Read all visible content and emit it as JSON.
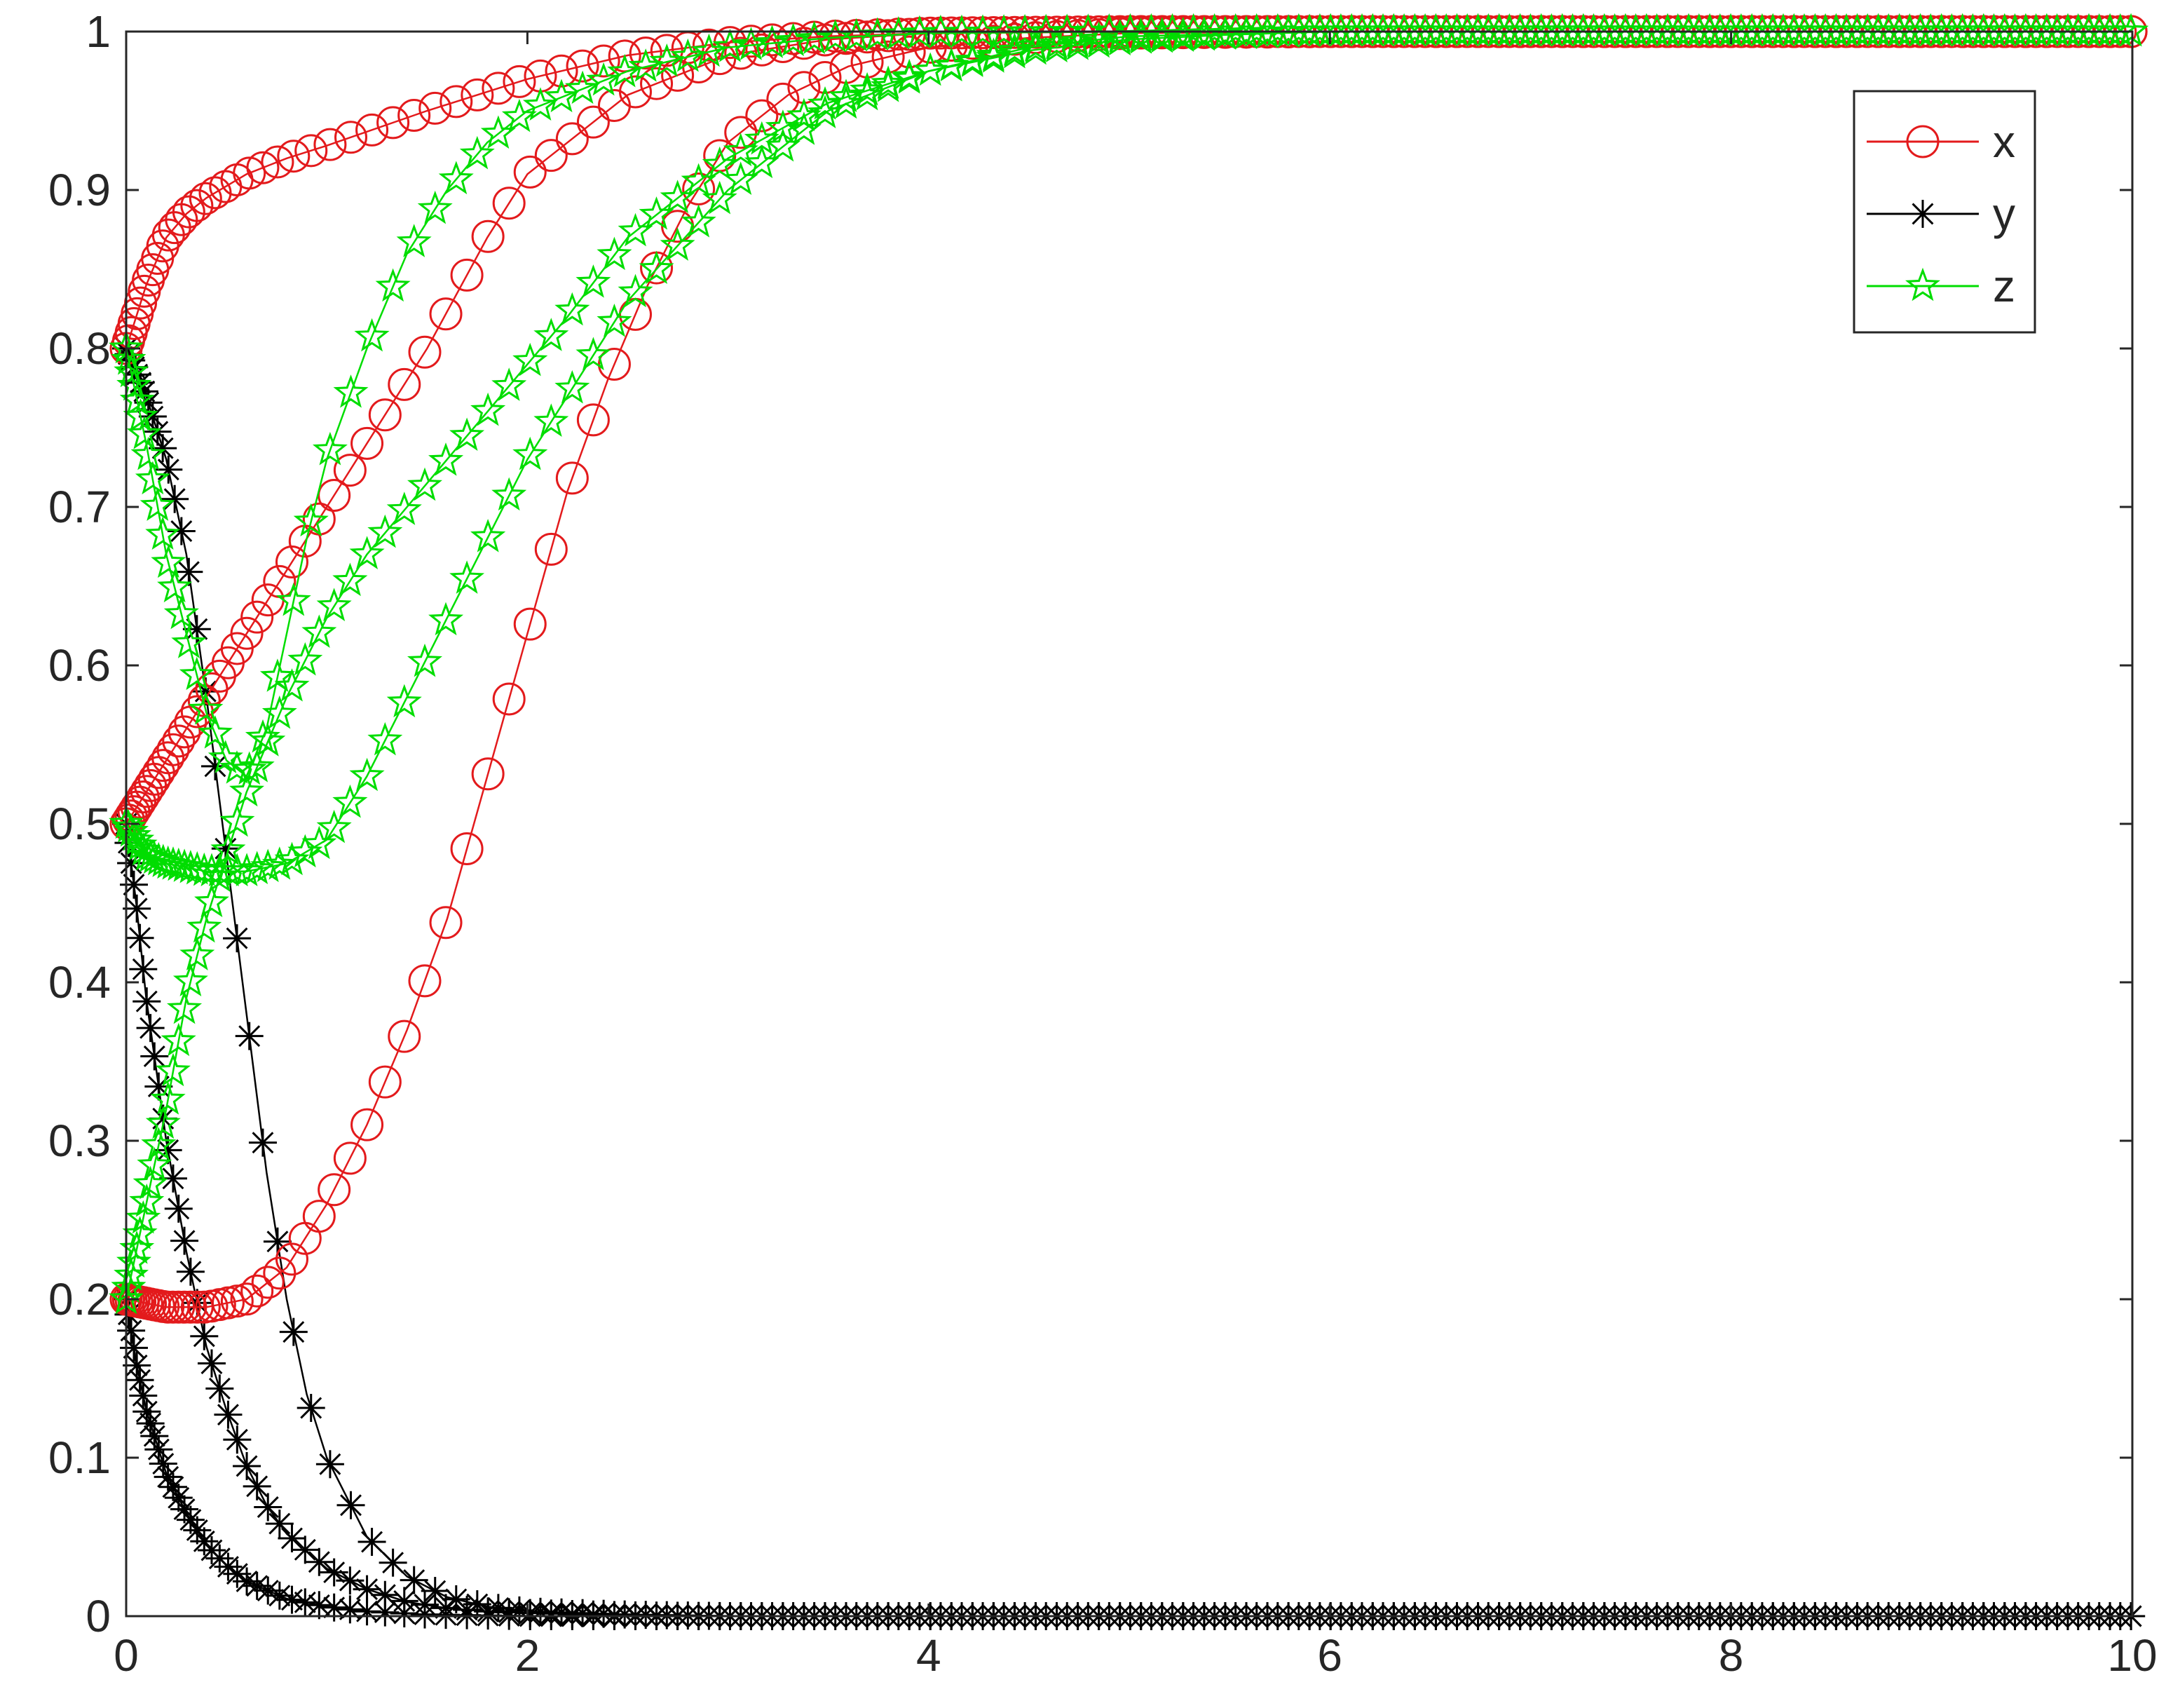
{
  "chart_data": {
    "type": "line",
    "title": "",
    "xlabel": "",
    "ylabel": "",
    "xlim": [
      0,
      10
    ],
    "ylim": [
      0,
      1
    ],
    "xticks": [
      0,
      2,
      4,
      6,
      8,
      10
    ],
    "yticks": [
      0,
      0.1,
      0.2,
      0.3,
      0.4,
      0.5,
      0.6,
      0.7,
      0.8,
      0.9,
      1
    ],
    "xtick_labels": [
      "0",
      "2",
      "4",
      "6",
      "8",
      "10"
    ],
    "ytick_labels": [
      "0",
      "0.1",
      "0.2",
      "0.3",
      "0.4",
      "0.5",
      "0.6",
      "0.7",
      "0.8",
      "0.9",
      "1"
    ],
    "grid": false,
    "legend_position": "top-right",
    "legend": [
      {
        "label": "x",
        "color": "#e31a1c",
        "marker": "circle"
      },
      {
        "label": "y",
        "color": "#000000",
        "marker": "asterisk"
      },
      {
        "label": "z",
        "color": "#00dd00",
        "marker": "pentagram"
      }
    ],
    "series": [
      {
        "name": "x",
        "color": "#e31a1c",
        "marker": "circle",
        "x": [
          0,
          0.1,
          0.2,
          0.3,
          0.4,
          0.6,
          0.8,
          1.0,
          1.5,
          2.0,
          2.5,
          3.0,
          3.5,
          4.0,
          5.0,
          6.0,
          8.0,
          10.0
        ],
        "y": [
          0.8,
          0.84,
          0.87,
          0.885,
          0.895,
          0.91,
          0.92,
          0.928,
          0.95,
          0.97,
          0.985,
          0.993,
          0.997,
          0.999,
          1.0,
          1.0,
          1.0,
          1.0
        ]
      },
      {
        "name": "x",
        "color": "#e31a1c",
        "marker": "circle",
        "x": [
          0,
          0.1,
          0.2,
          0.4,
          0.6,
          0.8,
          1.0,
          1.2,
          1.5,
          1.8,
          2.0,
          2.5,
          3.0,
          3.5,
          4.0,
          5.0,
          6.0,
          8.0,
          10.0
        ],
        "y": [
          0.5,
          0.52,
          0.54,
          0.58,
          0.62,
          0.66,
          0.7,
          0.74,
          0.8,
          0.87,
          0.91,
          0.96,
          0.985,
          0.995,
          0.999,
          1.0,
          1.0,
          1.0,
          1.0
        ]
      },
      {
        "name": "x",
        "color": "#e31a1c",
        "marker": "circle",
        "x": [
          0,
          0.2,
          0.4,
          0.6,
          0.8,
          1.0,
          1.2,
          1.4,
          1.6,
          1.8,
          2.0,
          2.2,
          2.4,
          2.6,
          2.8,
          3.0,
          3.3,
          3.6,
          4.0,
          4.5,
          5.0,
          6.0,
          8.0,
          10.0
        ],
        "y": [
          0.2,
          0.195,
          0.195,
          0.2,
          0.22,
          0.26,
          0.31,
          0.37,
          0.44,
          0.53,
          0.62,
          0.71,
          0.78,
          0.84,
          0.89,
          0.93,
          0.96,
          0.978,
          0.99,
          0.996,
          0.999,
          1.0,
          1.0,
          1.0
        ]
      },
      {
        "name": "y",
        "color": "#000000",
        "marker": "asterisk",
        "x": [
          0,
          0.1,
          0.2,
          0.3,
          0.4,
          0.5,
          0.6,
          0.7,
          0.8,
          0.9,
          1.0,
          1.2,
          1.4,
          1.6,
          1.8,
          2.0,
          2.5,
          3.0,
          4.0,
          6.0,
          8.0,
          10.0
        ],
        "y": [
          0.8,
          0.77,
          0.73,
          0.67,
          0.58,
          0.48,
          0.38,
          0.28,
          0.2,
          0.14,
          0.1,
          0.05,
          0.025,
          0.012,
          0.006,
          0.003,
          0.001,
          0.0,
          0.0,
          0.0,
          0.0,
          0.0
        ]
      },
      {
        "name": "y",
        "color": "#000000",
        "marker": "asterisk",
        "x": [
          0,
          0.05,
          0.1,
          0.2,
          0.3,
          0.4,
          0.5,
          0.6,
          0.7,
          0.8,
          1.0,
          1.2,
          1.4,
          1.6,
          1.8,
          2.0,
          2.5,
          3.0,
          4.0,
          6.0,
          8.0,
          10.0
        ],
        "y": [
          0.5,
          0.45,
          0.39,
          0.3,
          0.23,
          0.17,
          0.13,
          0.095,
          0.07,
          0.052,
          0.03,
          0.017,
          0.009,
          0.005,
          0.003,
          0.002,
          0.0005,
          0.0,
          0.0,
          0.0,
          0.0,
          0.0
        ]
      },
      {
        "name": "y",
        "color": "#000000",
        "marker": "asterisk",
        "x": [
          0,
          0.05,
          0.1,
          0.2,
          0.3,
          0.4,
          0.5,
          0.6,
          0.8,
          1.0,
          1.2,
          1.5,
          2.0,
          2.5,
          3.0,
          4.0,
          6.0,
          8.0,
          10.0
        ],
        "y": [
          0.2,
          0.16,
          0.13,
          0.09,
          0.065,
          0.045,
          0.032,
          0.022,
          0.011,
          0.006,
          0.003,
          0.001,
          0.0,
          0.0,
          0.0,
          0.0,
          0.0,
          0.0,
          0.0
        ]
      },
      {
        "name": "z",
        "color": "#00dd00",
        "marker": "pentagram",
        "x": [
          0,
          0.1,
          0.2,
          0.3,
          0.4,
          0.5,
          0.6,
          0.7,
          0.8,
          0.9,
          1.0,
          1.2,
          1.4,
          1.6,
          1.8,
          2.0,
          2.5,
          3.0,
          3.5,
          4.0,
          5.0,
          6.0,
          8.0,
          10.0
        ],
        "y": [
          0.8,
          0.74,
          0.67,
          0.62,
          0.57,
          0.54,
          0.53,
          0.56,
          0.62,
          0.68,
          0.73,
          0.8,
          0.86,
          0.9,
          0.93,
          0.95,
          0.975,
          0.99,
          0.996,
          0.999,
          1.0,
          1.0,
          1.0,
          1.0
        ]
      },
      {
        "name": "z",
        "color": "#00dd00",
        "marker": "pentagram",
        "x": [
          0,
          0.1,
          0.2,
          0.4,
          0.6,
          0.8,
          1.0,
          1.2,
          1.4,
          1.6,
          1.8,
          2.0,
          2.2,
          2.5,
          3.0,
          3.5,
          4.0,
          4.5,
          5.0,
          6.0,
          8.0,
          10.0
        ],
        "y": [
          0.5,
          0.48,
          0.475,
          0.47,
          0.47,
          0.475,
          0.49,
          0.53,
          0.58,
          0.63,
          0.68,
          0.73,
          0.77,
          0.83,
          0.9,
          0.95,
          0.975,
          0.99,
          0.997,
          1.0,
          1.0,
          1.0
        ]
      },
      {
        "name": "z",
        "color": "#00dd00",
        "marker": "pentagram",
        "x": [
          0,
          0.1,
          0.2,
          0.3,
          0.4,
          0.5,
          0.6,
          0.8,
          1.0,
          1.2,
          1.4,
          1.6,
          1.8,
          2.0,
          2.2,
          2.5,
          3.0,
          3.5,
          4.0,
          4.5,
          5.0,
          5.5,
          6.0,
          8.0,
          10.0
        ],
        "y": [
          0.2,
          0.26,
          0.32,
          0.39,
          0.44,
          0.48,
          0.52,
          0.58,
          0.63,
          0.67,
          0.7,
          0.73,
          0.76,
          0.79,
          0.82,
          0.87,
          0.92,
          0.955,
          0.975,
          0.988,
          0.995,
          0.998,
          1.0,
          1.0,
          1.0
        ]
      }
    ]
  }
}
